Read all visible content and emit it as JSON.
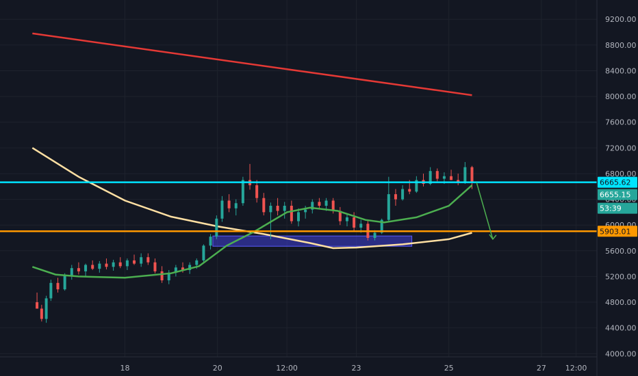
{
  "colors": {
    "background": "#131722",
    "grid": "#1e222d",
    "axis_text": "#b2b5be",
    "candle_up": "#26a69a",
    "candle_down": "#ef5350",
    "resistance_line": "#00e5ff",
    "support_line": "#ff9800",
    "ma_short": "#4caf50",
    "ma_long": "#ffe0a3",
    "trend_line": "#e53935",
    "zone_fill": "#3f3fd6",
    "arrow": "#4caf50"
  },
  "chart_data": {
    "type": "candlestick",
    "title": "",
    "ylim": [
      3950,
      9500
    ],
    "y_ticks": [
      "9200.00",
      "8800.00",
      "8400.00",
      "8000.00",
      "7600.00",
      "7200.00",
      "6800.00",
      "6400.00",
      "6000.00",
      "5600.00",
      "5200.00",
      "4800.00",
      "4400.00",
      "4000.00"
    ],
    "x_ticks": [
      "18",
      "20",
      "12:00",
      "23",
      "25",
      "27",
      "12:00"
    ],
    "price_labels": {
      "resistance": "6665.62",
      "last_price": "6655.15",
      "countdown": "53:39",
      "support": "5903.01"
    },
    "resistance_level": 6665.62,
    "support_level": 5903.01,
    "last_price": 6655.15,
    "red_trendline": [
      [
        16.0,
        8980
      ],
      [
        25.5,
        8020
      ]
    ],
    "ma_long_points": [
      [
        16.0,
        7200
      ],
      [
        17.0,
        6750
      ],
      [
        18.0,
        6380
      ],
      [
        19.0,
        6130
      ],
      [
        20.0,
        5980
      ],
      [
        21.0,
        5860
      ],
      [
        22.0,
        5720
      ],
      [
        22.5,
        5640
      ],
      [
        23.0,
        5650
      ],
      [
        24.0,
        5700
      ],
      [
        25.0,
        5780
      ],
      [
        25.5,
        5880
      ]
    ],
    "ma_short_points": [
      [
        16.0,
        5350
      ],
      [
        16.5,
        5230
      ],
      [
        17.0,
        5200
      ],
      [
        18.0,
        5180
      ],
      [
        19.0,
        5250
      ],
      [
        19.6,
        5360
      ],
      [
        20.2,
        5680
      ],
      [
        20.8,
        5900
      ],
      [
        21.5,
        6200
      ],
      [
        22.0,
        6270
      ],
      [
        22.6,
        6220
      ],
      [
        23.2,
        6080
      ],
      [
        23.6,
        6040
      ],
      [
        24.3,
        6120
      ],
      [
        25.0,
        6300
      ],
      [
        25.5,
        6620
      ]
    ],
    "support_zone": {
      "x_start": 19.9,
      "x_end": 24.2,
      "y_low": 5670,
      "y_high": 5830
    },
    "projection_arrow": [
      [
        25.6,
        6660
      ],
      [
        25.95,
        5780
      ]
    ],
    "candles": [
      [
        16.1,
        4800,
        4950,
        4700,
        4700
      ],
      [
        16.2,
        4700,
        4760,
        4500,
        4540
      ],
      [
        16.3,
        4540,
        4900,
        4480,
        4860
      ],
      [
        16.4,
        4860,
        5150,
        4820,
        5100
      ],
      [
        16.55,
        5100,
        5180,
        4950,
        5000
      ],
      [
        16.7,
        5000,
        5250,
        4980,
        5220
      ],
      [
        16.85,
        5220,
        5380,
        5150,
        5330
      ],
      [
        17.0,
        5330,
        5420,
        5230,
        5280
      ],
      [
        17.15,
        5280,
        5400,
        5200,
        5380
      ],
      [
        17.3,
        5380,
        5450,
        5300,
        5320
      ],
      [
        17.45,
        5320,
        5440,
        5260,
        5400
      ],
      [
        17.6,
        5400,
        5480,
        5310,
        5350
      ],
      [
        17.75,
        5350,
        5460,
        5290,
        5420
      ],
      [
        17.9,
        5420,
        5500,
        5330,
        5360
      ],
      [
        18.05,
        5360,
        5480,
        5300,
        5450
      ],
      [
        18.2,
        5450,
        5540,
        5380,
        5400
      ],
      [
        18.35,
        5400,
        5560,
        5350,
        5500
      ],
      [
        18.5,
        5500,
        5560,
        5380,
        5420
      ],
      [
        18.65,
        5420,
        5480,
        5250,
        5280
      ],
      [
        18.8,
        5280,
        5360,
        5100,
        5140
      ],
      [
        18.95,
        5140,
        5300,
        5080,
        5260
      ],
      [
        19.1,
        5260,
        5380,
        5200,
        5340
      ],
      [
        19.25,
        5340,
        5420,
        5260,
        5300
      ],
      [
        19.4,
        5300,
        5420,
        5240,
        5380
      ],
      [
        19.55,
        5380,
        5480,
        5320,
        5450
      ],
      [
        19.7,
        5450,
        5700,
        5420,
        5680
      ],
      [
        19.85,
        5680,
        5860,
        5620,
        5820
      ],
      [
        19.98,
        5820,
        6150,
        5780,
        6100
      ],
      [
        20.1,
        6100,
        6450,
        6050,
        6380
      ],
      [
        20.25,
        6380,
        6480,
        6200,
        6260
      ],
      [
        20.4,
        6260,
        6400,
        6150,
        6340
      ],
      [
        20.55,
        6340,
        6750,
        6300,
        6700
      ],
      [
        20.7,
        6700,
        6950,
        6550,
        6620
      ],
      [
        20.85,
        6620,
        6700,
        6350,
        6420
      ],
      [
        21.0,
        6420,
        6500,
        6150,
        6200
      ],
      [
        21.15,
        6200,
        6350,
        5780,
        6300
      ],
      [
        21.3,
        6300,
        6420,
        6150,
        6220
      ],
      [
        21.45,
        6220,
        6360,
        6100,
        6300
      ],
      [
        21.6,
        6300,
        6380,
        6020,
        6060
      ],
      [
        21.75,
        6060,
        6260,
        5980,
        6200
      ],
      [
        21.9,
        6200,
        6300,
        6100,
        6240
      ],
      [
        22.05,
        6240,
        6400,
        6180,
        6360
      ],
      [
        22.2,
        6360,
        6420,
        6250,
        6300
      ],
      [
        22.35,
        6300,
        6420,
        6220,
        6380
      ],
      [
        22.5,
        6380,
        6420,
        6180,
        6220
      ],
      [
        22.65,
        6220,
        6280,
        6000,
        6060
      ],
      [
        22.8,
        6060,
        6180,
        5980,
        6120
      ],
      [
        22.95,
        6120,
        6200,
        5900,
        5960
      ],
      [
        23.1,
        5960,
        6080,
        5880,
        6020
      ],
      [
        23.25,
        6020,
        6060,
        5760,
        5800
      ],
      [
        23.4,
        5800,
        5920,
        5760,
        5880
      ],
      [
        23.55,
        5880,
        6100,
        5860,
        6080
      ],
      [
        23.7,
        6080,
        6750,
        6060,
        6480
      ],
      [
        23.85,
        6480,
        6560,
        6300,
        6400
      ],
      [
        24.0,
        6400,
        6620,
        6380,
        6560
      ],
      [
        24.15,
        6560,
        6700,
        6480,
        6520
      ],
      [
        24.3,
        6520,
        6760,
        6500,
        6700
      ],
      [
        24.45,
        6700,
        6800,
        6600,
        6640
      ],
      [
        24.6,
        6640,
        6900,
        6620,
        6840
      ],
      [
        24.75,
        6840,
        6880,
        6680,
        6720
      ],
      [
        24.9,
        6720,
        6820,
        6640,
        6760
      ],
      [
        25.05,
        6760,
        6860,
        6700,
        6700
      ],
      [
        25.2,
        6700,
        6800,
        6620,
        6660
      ],
      [
        25.35,
        6660,
        6980,
        6640,
        6900
      ],
      [
        25.5,
        6900,
        6920,
        6560,
        6655
      ]
    ]
  }
}
